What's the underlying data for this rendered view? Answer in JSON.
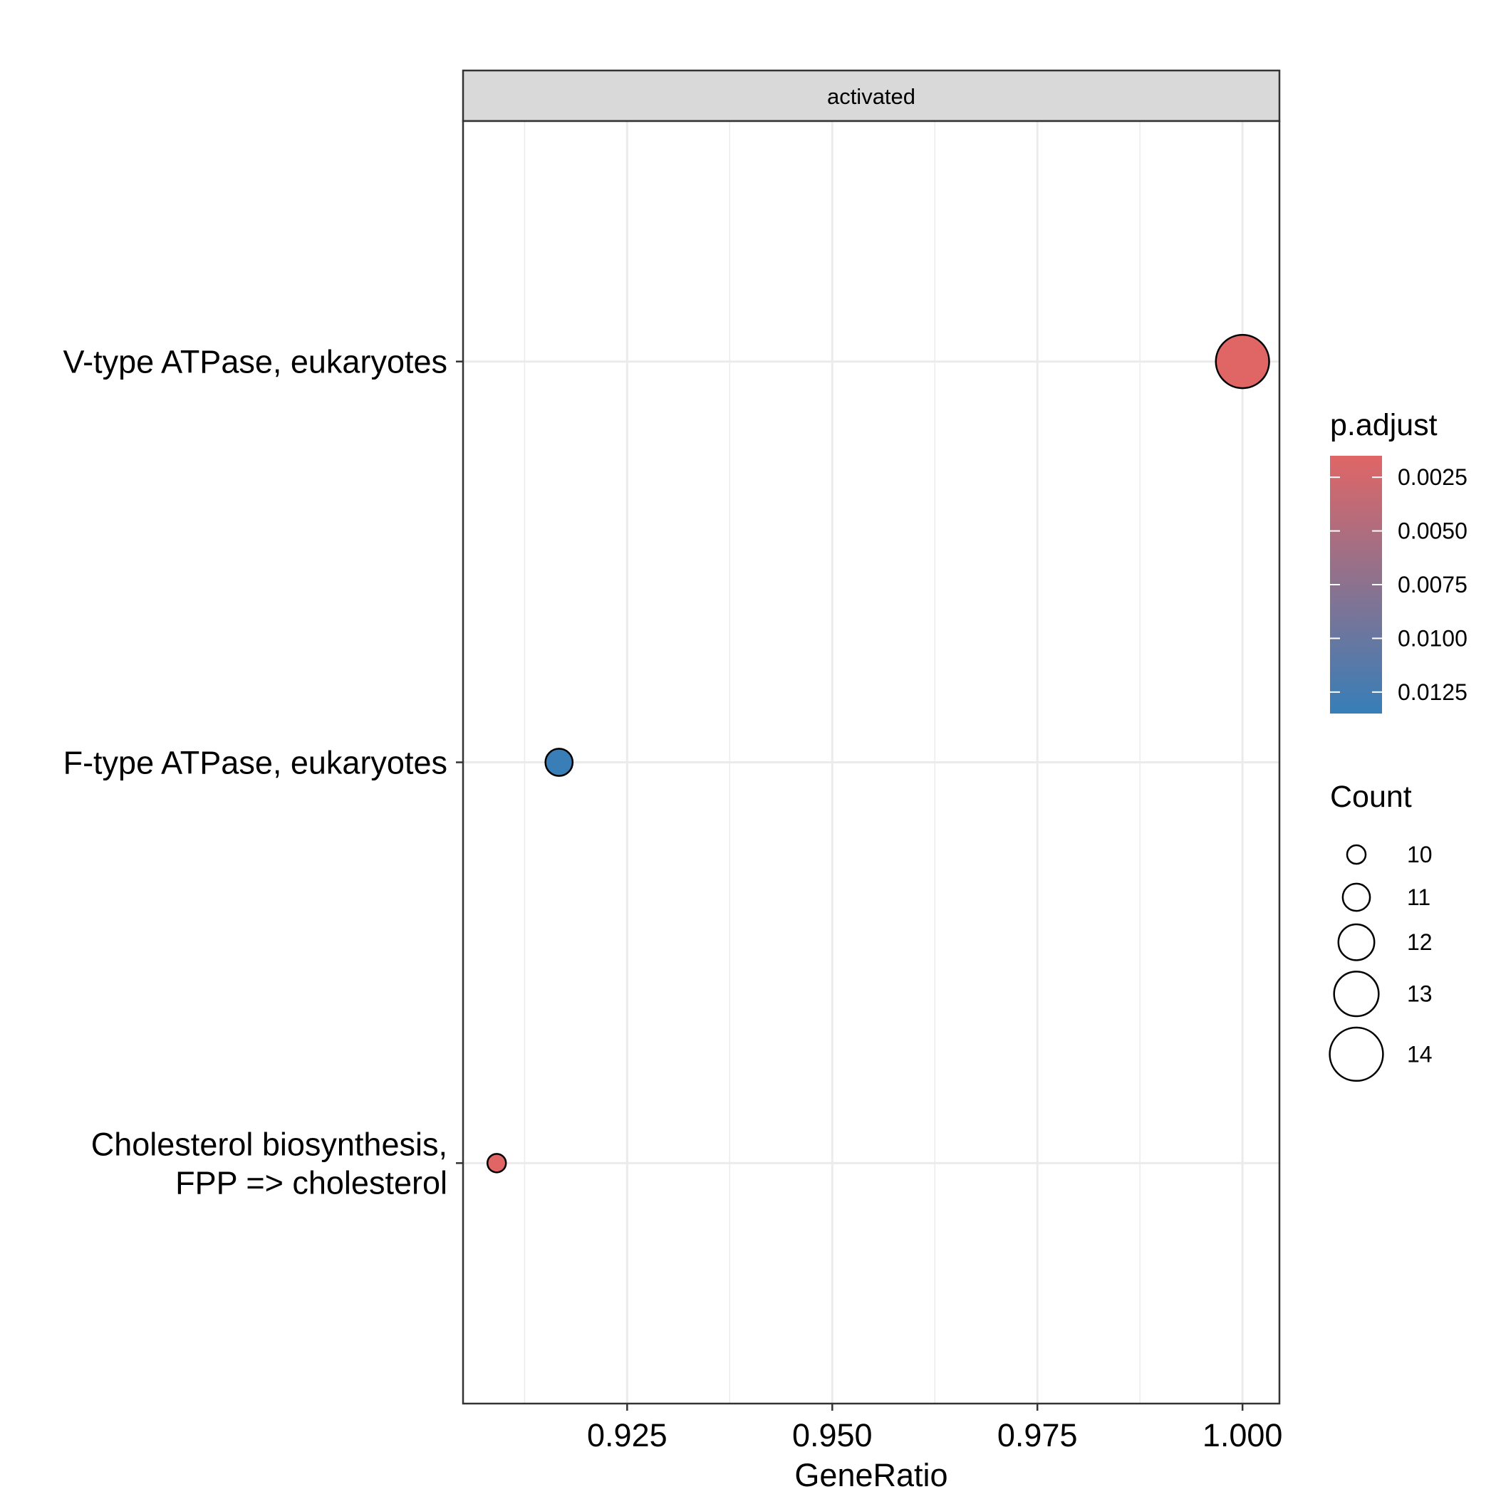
{
  "chart_data": {
    "type": "scatter",
    "facet_label": "activated",
    "xlabel": "GeneRatio",
    "ylabel": "",
    "xlim": [
      0.905,
      1.0045
    ],
    "x_ticks": [
      0.925,
      0.95,
      0.975,
      1.0
    ],
    "x_tick_labels": [
      "0.925",
      "0.950",
      "0.975",
      "1.000"
    ],
    "categories": [
      [
        "V-type ATPase, eukaryotes"
      ],
      [
        "F-type ATPase, eukaryotes"
      ],
      [
        "Cholesterol biosynthesis,",
        "FPP => cholesterol"
      ]
    ],
    "points": [
      {
        "category": 0,
        "x": 1.0,
        "count": 14,
        "p_adjust": 0.0015
      },
      {
        "category": 1,
        "x": 0.9167,
        "count": 11,
        "p_adjust": 0.0133
      },
      {
        "category": 2,
        "x": 0.9091,
        "count": 10,
        "p_adjust": 0.0015
      }
    ],
    "grid": true,
    "color_legend": {
      "title": "p.adjust",
      "range": [
        0.0015,
        0.0135
      ],
      "ticks": [
        0.0025,
        0.005,
        0.0075,
        0.01,
        0.0125
      ],
      "tick_labels": [
        "0.0025",
        "0.0050",
        "0.0075",
        "0.0100",
        "0.0125"
      ],
      "low_color": "#e06666",
      "high_color": "#377eb8"
    },
    "size_legend": {
      "title": "Count",
      "values": [
        10,
        11,
        12,
        13,
        14
      ],
      "labels": [
        "10",
        "11",
        "12",
        "13",
        "14"
      ]
    },
    "colors": {
      "panel_border": "#333333",
      "grid": "#ebebeb",
      "strip_fill": "#d9d9d9"
    }
  }
}
